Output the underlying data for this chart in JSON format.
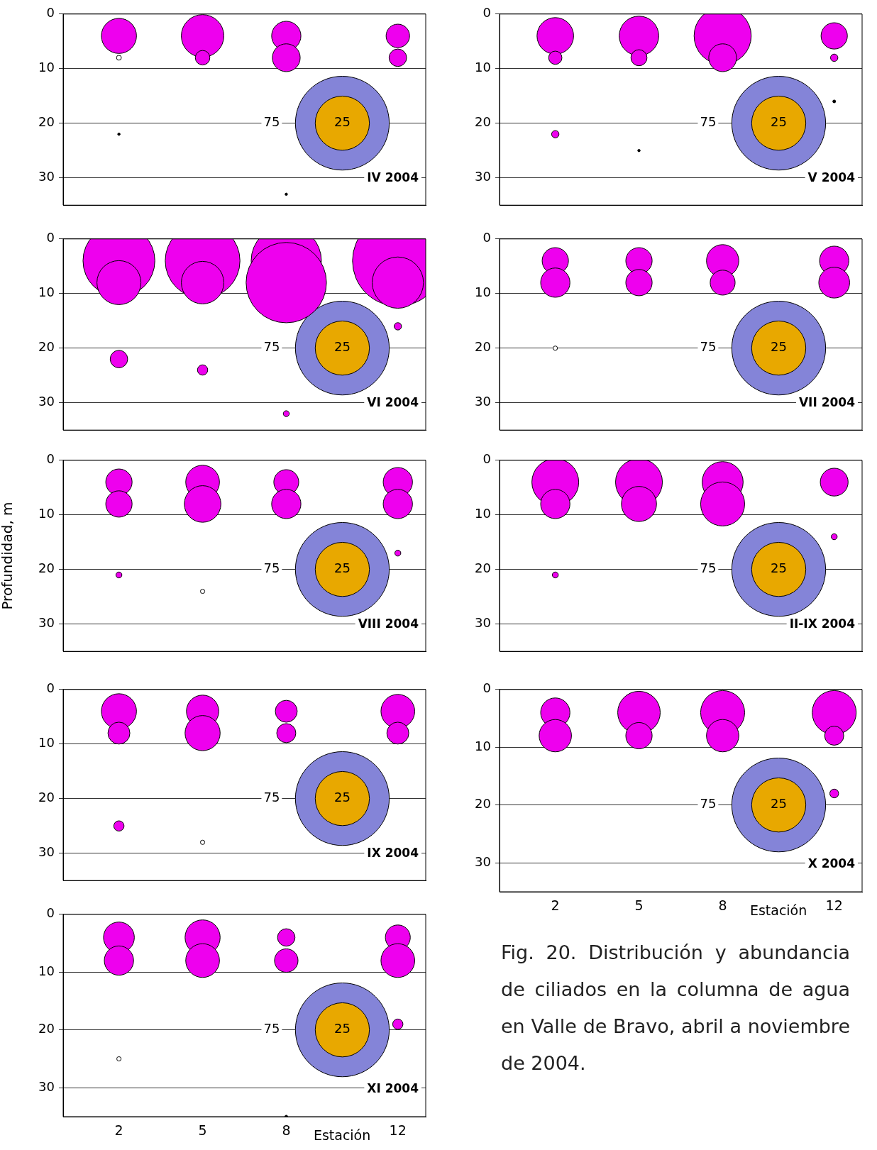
{
  "chart_data": [
    {
      "type": "bubble",
      "title": "IV 2004",
      "x": [
        2,
        2,
        2,
        5,
        5,
        8,
        8,
        8,
        12,
        12
      ],
      "values": [
        4,
        8,
        22,
        4,
        8,
        4,
        8,
        33,
        4,
        8
      ],
      "sizes": [
        10.5,
        0.2,
        0.05,
        15.4,
        1.8,
        7.3,
        6.6,
        0.05,
        4.7,
        2.6
      ],
      "colors": [
        "#ee00ee",
        "#ffffff",
        "#000000",
        "#ee00ee",
        "#ee00ee",
        "#ee00ee",
        "#ee00ee",
        "#000000",
        "#ee00ee",
        "#ee00ee"
      ],
      "size_legend": [
        75,
        25
      ],
      "xlim": [
        0,
        13
      ],
      "ylim": [
        35,
        0
      ],
      "xticks": [
        2,
        5,
        8,
        12
      ],
      "yticks": [
        0,
        10,
        20,
        30
      ],
      "grid": "y",
      "tick_labels": "y"
    },
    {
      "type": "bubble",
      "title": "V 2004",
      "x": [
        2,
        2,
        2,
        5,
        5,
        5,
        8,
        8,
        12,
        12,
        12
      ],
      "values": [
        4,
        8,
        22,
        4,
        8,
        25,
        4,
        8,
        4,
        8,
        16
      ],
      "sizes": [
        11.4,
        1.5,
        0.46,
        13.3,
        2.2,
        0.05,
        27.8,
        6.6,
        5.9,
        0.46,
        0.07
      ],
      "colors": [
        "#ee00ee",
        "#ee00ee",
        "#ee00ee",
        "#ee00ee",
        "#ee00ee",
        "#000000",
        "#ee00ee",
        "#ee00ee",
        "#ee00ee",
        "#ee00ee",
        "#000000"
      ],
      "size_legend": [
        75,
        25
      ],
      "xlim": [
        0,
        13
      ],
      "ylim": [
        35,
        0
      ],
      "xticks": [
        2,
        5,
        8,
        12
      ],
      "yticks": [
        0,
        10,
        20,
        30
      ],
      "grid": "y",
      "tick_labels": "y"
    },
    {
      "type": "bubble",
      "title": "VI 2004",
      "x": [
        2,
        2,
        2,
        5,
        5,
        5,
        8,
        8,
        8,
        12,
        12,
        12
      ],
      "values": [
        4,
        8,
        22,
        4,
        8,
        24,
        4,
        8,
        32,
        4,
        8,
        16
      ],
      "sizes": [
        44,
        16.5,
        2.6,
        47.6,
        15.4,
        0.9,
        42,
        55,
        0.3,
        70,
        22.4,
        0.46
      ],
      "colors": [
        "#ee00ee",
        "#ee00ee",
        "#ee00ee",
        "#ee00ee",
        "#ee00ee",
        "#ee00ee",
        "#ee00ee",
        "#ee00ee",
        "#ee00ee",
        "#ee00ee",
        "#ee00ee",
        "#ee00ee"
      ],
      "size_legend": [
        75,
        25
      ],
      "xlim": [
        0,
        13
      ],
      "ylim": [
        35,
        0
      ],
      "xticks": [
        2,
        5,
        8,
        12
      ],
      "yticks": [
        0,
        10,
        20,
        30
      ],
      "grid": "y",
      "tick_labels": "y"
    },
    {
      "type": "bubble",
      "title": "VII 2004",
      "x": [
        2,
        2,
        2,
        5,
        5,
        8,
        8,
        12,
        12
      ],
      "values": [
        4,
        8,
        20,
        4,
        8,
        4,
        8,
        4,
        8
      ],
      "sizes": [
        5.9,
        7.3,
        0.16,
        5.9,
        5.9,
        8.9,
        5.3,
        7.3,
        8.1
      ],
      "colors": [
        "#ee00ee",
        "#ee00ee",
        "#ffffff",
        "#ee00ee",
        "#ee00ee",
        "#ee00ee",
        "#ee00ee",
        "#ee00ee",
        "#ee00ee"
      ],
      "size_legend": [
        75,
        25
      ],
      "xlim": [
        0,
        13
      ],
      "ylim": [
        35,
        0
      ],
      "xticks": [
        2,
        5,
        8,
        12
      ],
      "yticks": [
        0,
        10,
        20,
        30
      ],
      "grid": "y",
      "tick_labels": "y"
    },
    {
      "type": "bubble",
      "title": "VIII 2004",
      "ylabel": "Profundidad, m",
      "x": [
        2,
        2,
        2,
        5,
        5,
        5,
        8,
        8,
        12,
        12,
        12
      ],
      "values": [
        4,
        8,
        21,
        4,
        8,
        24,
        4,
        8,
        4,
        8,
        17
      ],
      "sizes": [
        5.9,
        5.9,
        0.3,
        9.7,
        11.4,
        0.16,
        5.3,
        7.3,
        7.3,
        7.3,
        0.3
      ],
      "colors": [
        "#ee00ee",
        "#ee00ee",
        "#ee00ee",
        "#ee00ee",
        "#ee00ee",
        "#ffffff",
        "#ee00ee",
        "#ee00ee",
        "#ee00ee",
        "#ee00ee",
        "#ee00ee"
      ],
      "size_legend": [
        75,
        25
      ],
      "xlim": [
        0,
        13
      ],
      "ylim": [
        35,
        0
      ],
      "xticks": [
        2,
        5,
        8,
        12
      ],
      "yticks": [
        0,
        10,
        20,
        30
      ],
      "grid": "y",
      "tick_labels": "y"
    },
    {
      "type": "bubble",
      "title": "II-IX 2004",
      "x": [
        2,
        2,
        2,
        5,
        5,
        8,
        8,
        12,
        12
      ],
      "values": [
        4,
        8,
        21,
        4,
        8,
        4,
        8,
        4,
        14
      ],
      "sizes": [
        18.7,
        7.3,
        0.3,
        18.7,
        10.5,
        14.3,
        16.5,
        6.6,
        0.3
      ],
      "colors": [
        "#ee00ee",
        "#ee00ee",
        "#ee00ee",
        "#ee00ee",
        "#ee00ee",
        "#ee00ee",
        "#ee00ee",
        "#ee00ee",
        "#ee00ee"
      ],
      "size_legend": [
        75,
        25
      ],
      "xlim": [
        0,
        13
      ],
      "ylim": [
        35,
        0
      ],
      "xticks": [
        2,
        5,
        8,
        12
      ],
      "yticks": [
        0,
        10,
        20,
        30
      ],
      "grid": "y",
      "tick_labels": "y"
    },
    {
      "type": "bubble",
      "title": "IX 2004",
      "x": [
        2,
        2,
        2,
        5,
        5,
        5,
        8,
        8,
        12,
        12
      ],
      "values": [
        4,
        8,
        25,
        4,
        8,
        28,
        4,
        8,
        4,
        8
      ],
      "sizes": [
        10.5,
        4.1,
        0.9,
        8.9,
        10.5,
        0.16,
        4.1,
        3.1,
        9.7,
        4.1
      ],
      "colors": [
        "#ee00ee",
        "#ee00ee",
        "#ee00ee",
        "#ee00ee",
        "#ee00ee",
        "#ffffff",
        "#ee00ee",
        "#ee00ee",
        "#ee00ee",
        "#ee00ee"
      ],
      "size_legend": [
        75,
        25
      ],
      "xlim": [
        0,
        13
      ],
      "ylim": [
        35,
        0
      ],
      "xticks": [
        2,
        5,
        8,
        12
      ],
      "yticks": [
        0,
        10,
        20,
        30
      ],
      "grid": "y",
      "tick_labels": "y"
    },
    {
      "type": "bubble",
      "title": "X 2004",
      "xlabel": "Estación",
      "annotations": [
        "Fig. 20. Distribución y abundancia de ciliados en la columna de agua en Valle de Bravo, abril a noviembre de 2004."
      ],
      "x": [
        2,
        2,
        5,
        5,
        8,
        8,
        12,
        12,
        12
      ],
      "values": [
        4,
        8,
        4,
        8,
        4,
        8,
        4,
        8,
        18
      ],
      "sizes": [
        7.3,
        8.9,
        15.4,
        5.9,
        16.5,
        8.9,
        16.5,
        3.1,
        0.66
      ],
      "colors": [
        "#ee00ee",
        "#ee00ee",
        "#ee00ee",
        "#ee00ee",
        "#ee00ee",
        "#ee00ee",
        "#ee00ee",
        "#ee00ee",
        "#ee00ee"
      ],
      "size_legend": [
        75,
        25
      ],
      "xlim": [
        0,
        13
      ],
      "ylim": [
        35,
        0
      ],
      "xticks": [
        2,
        5,
        8,
        12
      ],
      "yticks": [
        0,
        10,
        20,
        30
      ],
      "grid": "y"
    },
    {
      "type": "bubble",
      "title": "XI 2004",
      "xlabel": "Estación",
      "x": [
        2,
        2,
        2,
        5,
        5,
        8,
        8,
        8,
        12,
        12,
        12
      ],
      "values": [
        4,
        8,
        25,
        4,
        8,
        4,
        8,
        35,
        4,
        8,
        19
      ],
      "sizes": [
        8.1,
        7.3,
        0.16,
        10.5,
        9.7,
        2.6,
        4.7,
        0.07,
        5.3,
        9.7,
        0.9
      ],
      "colors": [
        "#ee00ee",
        "#ee00ee",
        "#ffffff",
        "#ee00ee",
        "#ee00ee",
        "#ee00ee",
        "#ee00ee",
        "#000000",
        "#ee00ee",
        "#ee00ee",
        "#ee00ee"
      ],
      "size_legend": [
        75,
        25
      ],
      "xlim": [
        0,
        13
      ],
      "ylim": [
        35,
        0
      ],
      "xticks": [
        2,
        5,
        8,
        12
      ],
      "yticks": [
        0,
        10,
        20,
        30
      ],
      "grid": "y"
    }
  ]
}
